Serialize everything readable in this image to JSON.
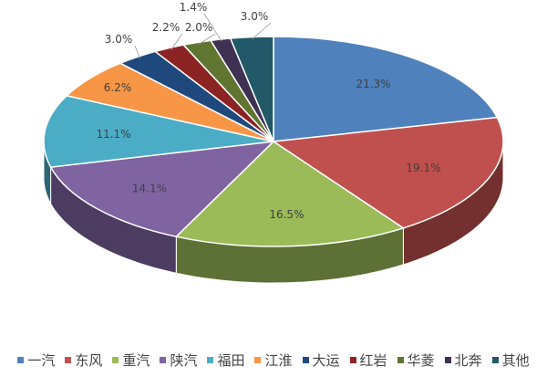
{
  "chart_data": {
    "type": "pie",
    "style": "3d",
    "title": "",
    "categories": [
      "一汽",
      "东风",
      "重汽",
      "陕汽",
      "福田",
      "江淮",
      "大运",
      "红岩",
      "华菱",
      "北奔",
      "其他"
    ],
    "values": [
      21.3,
      19.1,
      16.5,
      14.1,
      11.1,
      6.2,
      3.0,
      2.2,
      2.0,
      1.4,
      3.0
    ],
    "labels": [
      "21.3%",
      "19.1%",
      "16.5%",
      "14.1%",
      "11.1%",
      "6.2%",
      "3.0%",
      "2.2%",
      "2.0%",
      "1.4%",
      "3.0%"
    ],
    "colors": [
      "#4f81bd",
      "#c0504d",
      "#9bbb59",
      "#8064a2",
      "#4bacc6",
      "#f79646",
      "#1f497d",
      "#8b2323",
      "#5f7530",
      "#3f3151",
      "#215968"
    ],
    "legend_position": "bottom"
  }
}
